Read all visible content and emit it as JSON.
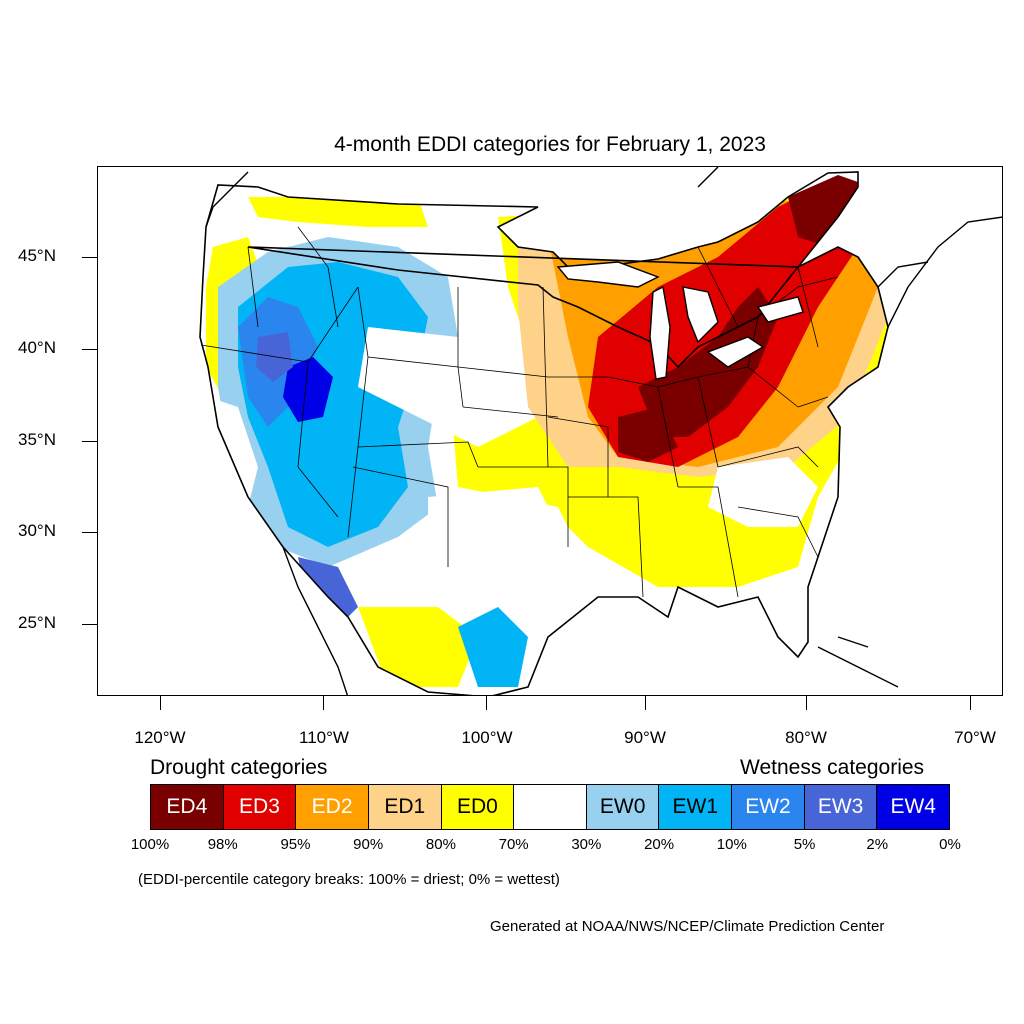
{
  "title": "4-month EDDI categories for February 1, 2023",
  "map": {
    "lat_labels": [
      "45°N",
      "40°N",
      "35°N",
      "30°N",
      "25°N"
    ],
    "lon_labels": [
      "120°W",
      "110°W",
      "100°W",
      "90°W",
      "80°W",
      "70°W"
    ],
    "colors": {
      "ED4": "#7a0000",
      "ED3": "#e00000",
      "ED2": "#ffa000",
      "ED1": "#ffd28a",
      "ED0": "#ffff00",
      "NEUTRAL": "#ffffff",
      "EW0": "#98d0f0",
      "EW1": "#00b4f5",
      "EW2": "#2b85ee",
      "EW3": "#4865d8",
      "EW4": "#0000e6"
    }
  },
  "legend": {
    "drought_title": "Drought categories",
    "wetness_title": "Wetness categories",
    "categories": [
      {
        "label": "ED4",
        "color": "#7a0000",
        "text_color": "#ffffff"
      },
      {
        "label": "ED3",
        "color": "#e00000",
        "text_color": "#ffffff"
      },
      {
        "label": "ED2",
        "color": "#ffa000",
        "text_color": "#ffffff"
      },
      {
        "label": "ED1",
        "color": "#ffd28a",
        "text_color": "#000000"
      },
      {
        "label": "ED0",
        "color": "#ffff00",
        "text_color": "#000000"
      },
      {
        "label": "",
        "color": "#ffffff",
        "text_color": "#000000"
      },
      {
        "label": "EW0",
        "color": "#98d0f0",
        "text_color": "#000000"
      },
      {
        "label": "EW1",
        "color": "#00b4f5",
        "text_color": "#000000"
      },
      {
        "label": "EW2",
        "color": "#2b85ee",
        "text_color": "#ffffff"
      },
      {
        "label": "EW3",
        "color": "#4865d8",
        "text_color": "#ffffff"
      },
      {
        "label": "EW4",
        "color": "#0000e6",
        "text_color": "#ffffff"
      }
    ],
    "percentiles": [
      "100%",
      "98%",
      "95%",
      "90%",
      "80%",
      "70%",
      "30%",
      "20%",
      "10%",
      "5%",
      "2%",
      "0%"
    ]
  },
  "note": "(EDDI-percentile category breaks: 100% = driest; 0% = wettest)",
  "credit": "Generated at NOAA/NWS/NCEP/Climate Prediction Center"
}
